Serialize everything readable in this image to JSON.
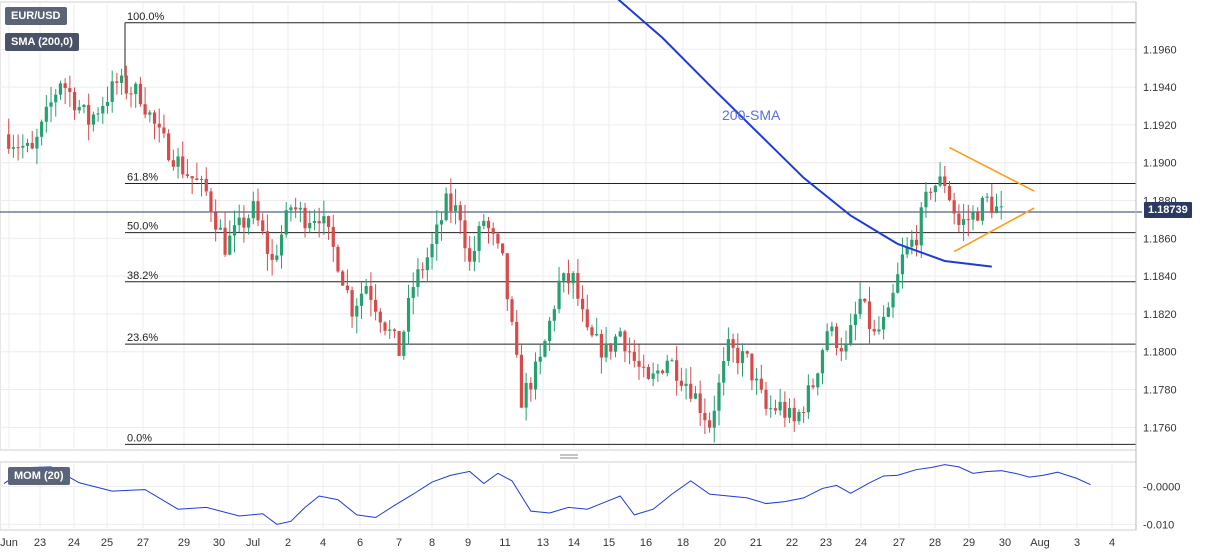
{
  "pair_label": "EUR/USD",
  "sma_label": "SMA (200,0)",
  "mom_label": "MOM (20)",
  "current_price": "1.18739",
  "colors": {
    "up": "#26a06f",
    "down": "#d64a4a",
    "sma": "#1e3bd6",
    "triangle": "#ff9a1a",
    "grid": "#ececec",
    "fib": "#222222"
  },
  "chart_data": {
    "type": "candlestick",
    "sma_annotation": "200-SMA",
    "price_axis": {
      "min": 1.1748,
      "max": 1.1985,
      "ticks": [
        "1.1960",
        "1.1940",
        "1.1920",
        "1.1900",
        "1.1880",
        "1.1860",
        "1.1840",
        "1.1820",
        "1.1800",
        "1.1780",
        "1.1760"
      ]
    },
    "mom_axis": {
      "min": -0.0115,
      "max": 0.0065,
      "ticks": [
        "-0.0000",
        "-0.010"
      ]
    },
    "x_ticks": [
      "Jun",
      "23",
      "24",
      "25",
      "27",
      "29",
      "30",
      "Jul",
      "2",
      "4",
      "6",
      "7",
      "8",
      "9",
      "11",
      "13",
      "14",
      "15",
      "16",
      "18",
      "20",
      "21",
      "22",
      "23",
      "24",
      "27",
      "28",
      "29",
      "30",
      "Aug",
      "3",
      "4"
    ],
    "fib_levels": [
      {
        "label": "100.0%",
        "price": 1.1974
      },
      {
        "label": "61.8%",
        "price": 1.1889
      },
      {
        "label": "50.0%",
        "price": 1.1863
      },
      {
        "label": "38.2%",
        "price": 1.1837
      },
      {
        "label": "23.6%",
        "price": 1.1804
      },
      {
        "label": "0.0%",
        "price": 1.1751
      }
    ],
    "current_price": 1.18739,
    "close_path": [
      [
        0,
        1.1915
      ],
      [
        6,
        1.1905
      ],
      [
        12,
        1.1944
      ],
      [
        18,
        1.1922
      ],
      [
        24,
        1.1942
      ],
      [
        29,
        1.1936
      ],
      [
        33,
        1.1914
      ],
      [
        38,
        1.1897
      ],
      [
        43,
        1.1884
      ],
      [
        47,
        1.1856
      ],
      [
        53,
        1.1875
      ],
      [
        57,
        1.1847
      ],
      [
        61,
        1.1877
      ],
      [
        64,
        1.1871
      ],
      [
        67,
        1.1873
      ],
      [
        71,
        1.1848
      ],
      [
        74,
        1.1823
      ],
      [
        77,
        1.1836
      ],
      [
        80,
        1.182
      ],
      [
        84,
        1.18
      ],
      [
        87,
        1.1835
      ],
      [
        91,
        1.1855
      ],
      [
        94,
        1.1878
      ],
      [
        97,
        1.1873
      ],
      [
        99,
        1.1846
      ],
      [
        102,
        1.187
      ],
      [
        106,
        1.1847
      ],
      [
        110,
        1.1775
      ],
      [
        114,
        1.1794
      ],
      [
        118,
        1.1836
      ],
      [
        121,
        1.1838
      ],
      [
        124,
        1.1808
      ],
      [
        128,
        1.18
      ],
      [
        131,
        1.1811
      ],
      [
        134,
        1.1795
      ],
      [
        137,
        1.1782
      ],
      [
        141,
        1.1797
      ],
      [
        146,
        1.1781
      ],
      [
        150,
        1.1762
      ],
      [
        154,
        1.1801
      ],
      [
        158,
        1.1795
      ],
      [
        162,
        1.1769
      ],
      [
        165,
        1.1771
      ],
      [
        168,
        1.1762
      ],
      [
        172,
        1.1783
      ],
      [
        175,
        1.1812
      ],
      [
        179,
        1.1801
      ],
      [
        182,
        1.1827
      ],
      [
        185,
        1.1808
      ],
      [
        188,
        1.1818
      ],
      [
        191,
        1.1849
      ],
      [
        194,
        1.1862
      ],
      [
        197,
        1.1888
      ],
      [
        200,
        1.189
      ],
      [
        203,
        1.1867
      ],
      [
        206,
        1.1872
      ],
      [
        209,
        1.188
      ],
      [
        212,
        1.1873
      ]
    ],
    "sma_path": [
      [
        122,
        1.2005
      ],
      [
        140,
        1.1966
      ],
      [
        150,
        1.1941
      ],
      [
        170,
        1.1892
      ],
      [
        180,
        1.1872
      ],
      [
        190,
        1.1857
      ],
      [
        200,
        1.1848
      ],
      [
        210,
        1.1845
      ]
    ],
    "triangle_upper": [
      [
        201,
        1.1908
      ],
      [
        219,
        1.1885
      ]
    ],
    "triangle_lower": [
      [
        202,
        1.1853
      ],
      [
        219,
        1.1876
      ]
    ],
    "mom_path": [
      [
        0,
        0.0008
      ],
      [
        5,
        0.005
      ],
      [
        10,
        0.0052
      ],
      [
        16,
        0.001
      ],
      [
        23,
        -0.0012
      ],
      [
        30,
        -0.0008
      ],
      [
        37,
        -0.006
      ],
      [
        43,
        -0.0055
      ],
      [
        50,
        -0.0078
      ],
      [
        55,
        -0.0072
      ],
      [
        58,
        -0.01
      ],
      [
        61,
        -0.0092
      ],
      [
        64,
        -0.0055
      ],
      [
        67,
        -0.0025
      ],
      [
        71,
        -0.0035
      ],
      [
        75,
        -0.0075
      ],
      [
        79,
        -0.0082
      ],
      [
        83,
        -0.005
      ],
      [
        87,
        -0.002
      ],
      [
        91,
        0.0012
      ],
      [
        95,
        0.003
      ],
      [
        99,
        0.004
      ],
      [
        102,
        0.0008
      ],
      [
        105,
        0.0035
      ],
      [
        108,
        0.0015
      ],
      [
        112,
        -0.0065
      ],
      [
        116,
        -0.007
      ],
      [
        120,
        -0.0055
      ],
      [
        124,
        -0.006
      ],
      [
        128,
        -0.004
      ],
      [
        131,
        -0.0025
      ],
      [
        134,
        -0.0075
      ],
      [
        138,
        -0.006
      ],
      [
        142,
        -0.002
      ],
      [
        146,
        0.0015
      ],
      [
        150,
        -0.002
      ],
      [
        154,
        -0.0025
      ],
      [
        158,
        -0.003
      ],
      [
        162,
        -0.0045
      ],
      [
        166,
        -0.004
      ],
      [
        170,
        -0.003
      ],
      [
        174,
        -0.0005
      ],
      [
        177,
        0.0003
      ],
      [
        180,
        -0.0018
      ],
      [
        184,
        0.001
      ],
      [
        187,
        0.0028
      ],
      [
        190,
        0.003
      ],
      [
        194,
        0.0045
      ],
      [
        197,
        0.005
      ],
      [
        200,
        0.0058
      ],
      [
        203,
        0.0052
      ],
      [
        206,
        0.0035
      ],
      [
        209,
        0.004
      ],
      [
        212,
        0.0042
      ],
      [
        215,
        0.0035
      ],
      [
        218,
        0.0025
      ],
      [
        221,
        0.003
      ],
      [
        224,
        0.0038
      ],
      [
        226,
        0.003
      ],
      [
        228,
        0.0022
      ],
      [
        231,
        0.0005
      ]
    ]
  }
}
